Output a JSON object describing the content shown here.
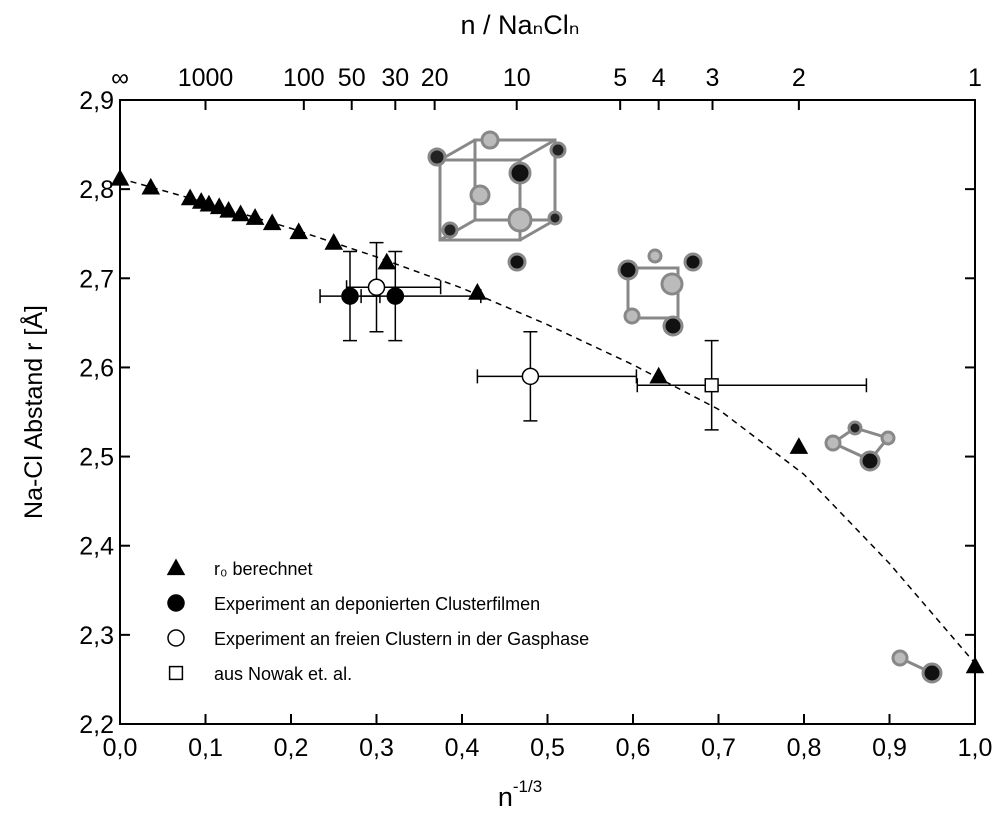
{
  "chart_data": {
    "type": "scatter",
    "title": "n / NaₙClₙ",
    "xlabel": {
      "base": "n",
      "sup": "-1/3"
    },
    "ylabel": "Na-Cl Abstand r [Å]",
    "xlim": [
      0,
      1.0
    ],
    "ylim": [
      2.2,
      2.9
    ],
    "xticks": [
      {
        "value": 0,
        "label": "0,0"
      },
      {
        "value": 0.1,
        "label": "0,1"
      },
      {
        "value": 0.2,
        "label": "0,2"
      },
      {
        "value": 0.3,
        "label": "0,3"
      },
      {
        "value": 0.4,
        "label": "0,4"
      },
      {
        "value": 0.5,
        "label": "0,5"
      },
      {
        "value": 0.6,
        "label": "0,6"
      },
      {
        "value": 0.7,
        "label": "0,7"
      },
      {
        "value": 0.8,
        "label": "0,8"
      },
      {
        "value": 0.9,
        "label": "0,9"
      },
      {
        "value": 1.0,
        "label": "1,0"
      }
    ],
    "yticks": [
      {
        "value": 2.2,
        "label": "2,2"
      },
      {
        "value": 2.3,
        "label": "2,3"
      },
      {
        "value": 2.4,
        "label": "2,4"
      },
      {
        "value": 2.5,
        "label": "2,5"
      },
      {
        "value": 2.6,
        "label": "2,6"
      },
      {
        "value": 2.7,
        "label": "2,7"
      },
      {
        "value": 2.8,
        "label": "2,8"
      },
      {
        "value": 2.9,
        "label": "2,9"
      }
    ],
    "x2lim": [
      0,
      1.0
    ],
    "x2ticks": [
      {
        "value": 0,
        "label": "∞"
      },
      {
        "value": 0.1,
        "label": "1000"
      },
      {
        "value": 0.215,
        "label": "100"
      },
      {
        "value": 0.271,
        "label": "50"
      },
      {
        "value": 0.322,
        "label": "30"
      },
      {
        "value": 0.368,
        "label": "20"
      },
      {
        "value": 0.464,
        "label": "10"
      },
      {
        "value": 0.585,
        "label": "5"
      },
      {
        "value": 0.63,
        "label": "4"
      },
      {
        "value": 0.693,
        "label": "3"
      },
      {
        "value": 0.794,
        "label": "2"
      },
      {
        "value": 1.0,
        "label": "1"
      }
    ],
    "series": [
      {
        "name": "r₀ berechnet",
        "marker": "triangle",
        "color": "#000000",
        "fill": "#000000",
        "x": [
          0.0,
          0.036,
          0.082,
          0.095,
          0.104,
          0.116,
          0.127,
          0.141,
          0.158,
          0.178,
          0.209,
          0.25,
          0.312,
          0.418,
          0.63,
          0.794,
          1.0
        ],
        "values": [
          2.812,
          2.802,
          2.79,
          2.786,
          2.783,
          2.78,
          2.776,
          2.772,
          2.768,
          2.762,
          2.752,
          2.74,
          2.718,
          2.684,
          2.59,
          2.511,
          2.265
        ]
      },
      {
        "name": "Experiment an deponierten Clusterfilmen",
        "marker": "circle",
        "color": "#000000",
        "fill": "#000000",
        "x": [
          0.269,
          0.322
        ],
        "values": [
          2.68,
          2.68
        ],
        "yerr": [
          0.05,
          0.05
        ],
        "xerr_minus": [
          0.035,
          0.04
        ],
        "xerr_plus": [
          0.035,
          0.1
        ]
      },
      {
        "name": "Experiment an freien Clustern in der Gasphase",
        "marker": "circle",
        "color": "#000000",
        "fill": "#ffffff",
        "x": [
          0.3,
          0.48
        ],
        "values": [
          2.69,
          2.59
        ],
        "yerr": [
          0.05,
          0.05
        ],
        "xerr_minus": [
          0.035,
          0.062
        ],
        "xerr_plus": [
          0.075,
          0.124
        ]
      },
      {
        "name": "aus Nowak et. al.",
        "marker": "square",
        "color": "#000000",
        "fill": "#ffffff",
        "x": [
          0.692
        ],
        "values": [
          2.58
        ],
        "yerr": [
          0.05
        ],
        "xerr_minus": [
          0.087
        ],
        "xerr_plus": [
          0.181
        ]
      }
    ],
    "fit": {
      "x": [
        0,
        0.1,
        0.2,
        0.3,
        0.4,
        0.5,
        0.6,
        0.7,
        0.8,
        0.9,
        1.0
      ],
      "values": [
        2.812,
        2.785,
        2.756,
        2.724,
        2.689,
        2.648,
        2.603,
        2.553,
        2.48,
        2.38,
        2.268
      ]
    }
  }
}
